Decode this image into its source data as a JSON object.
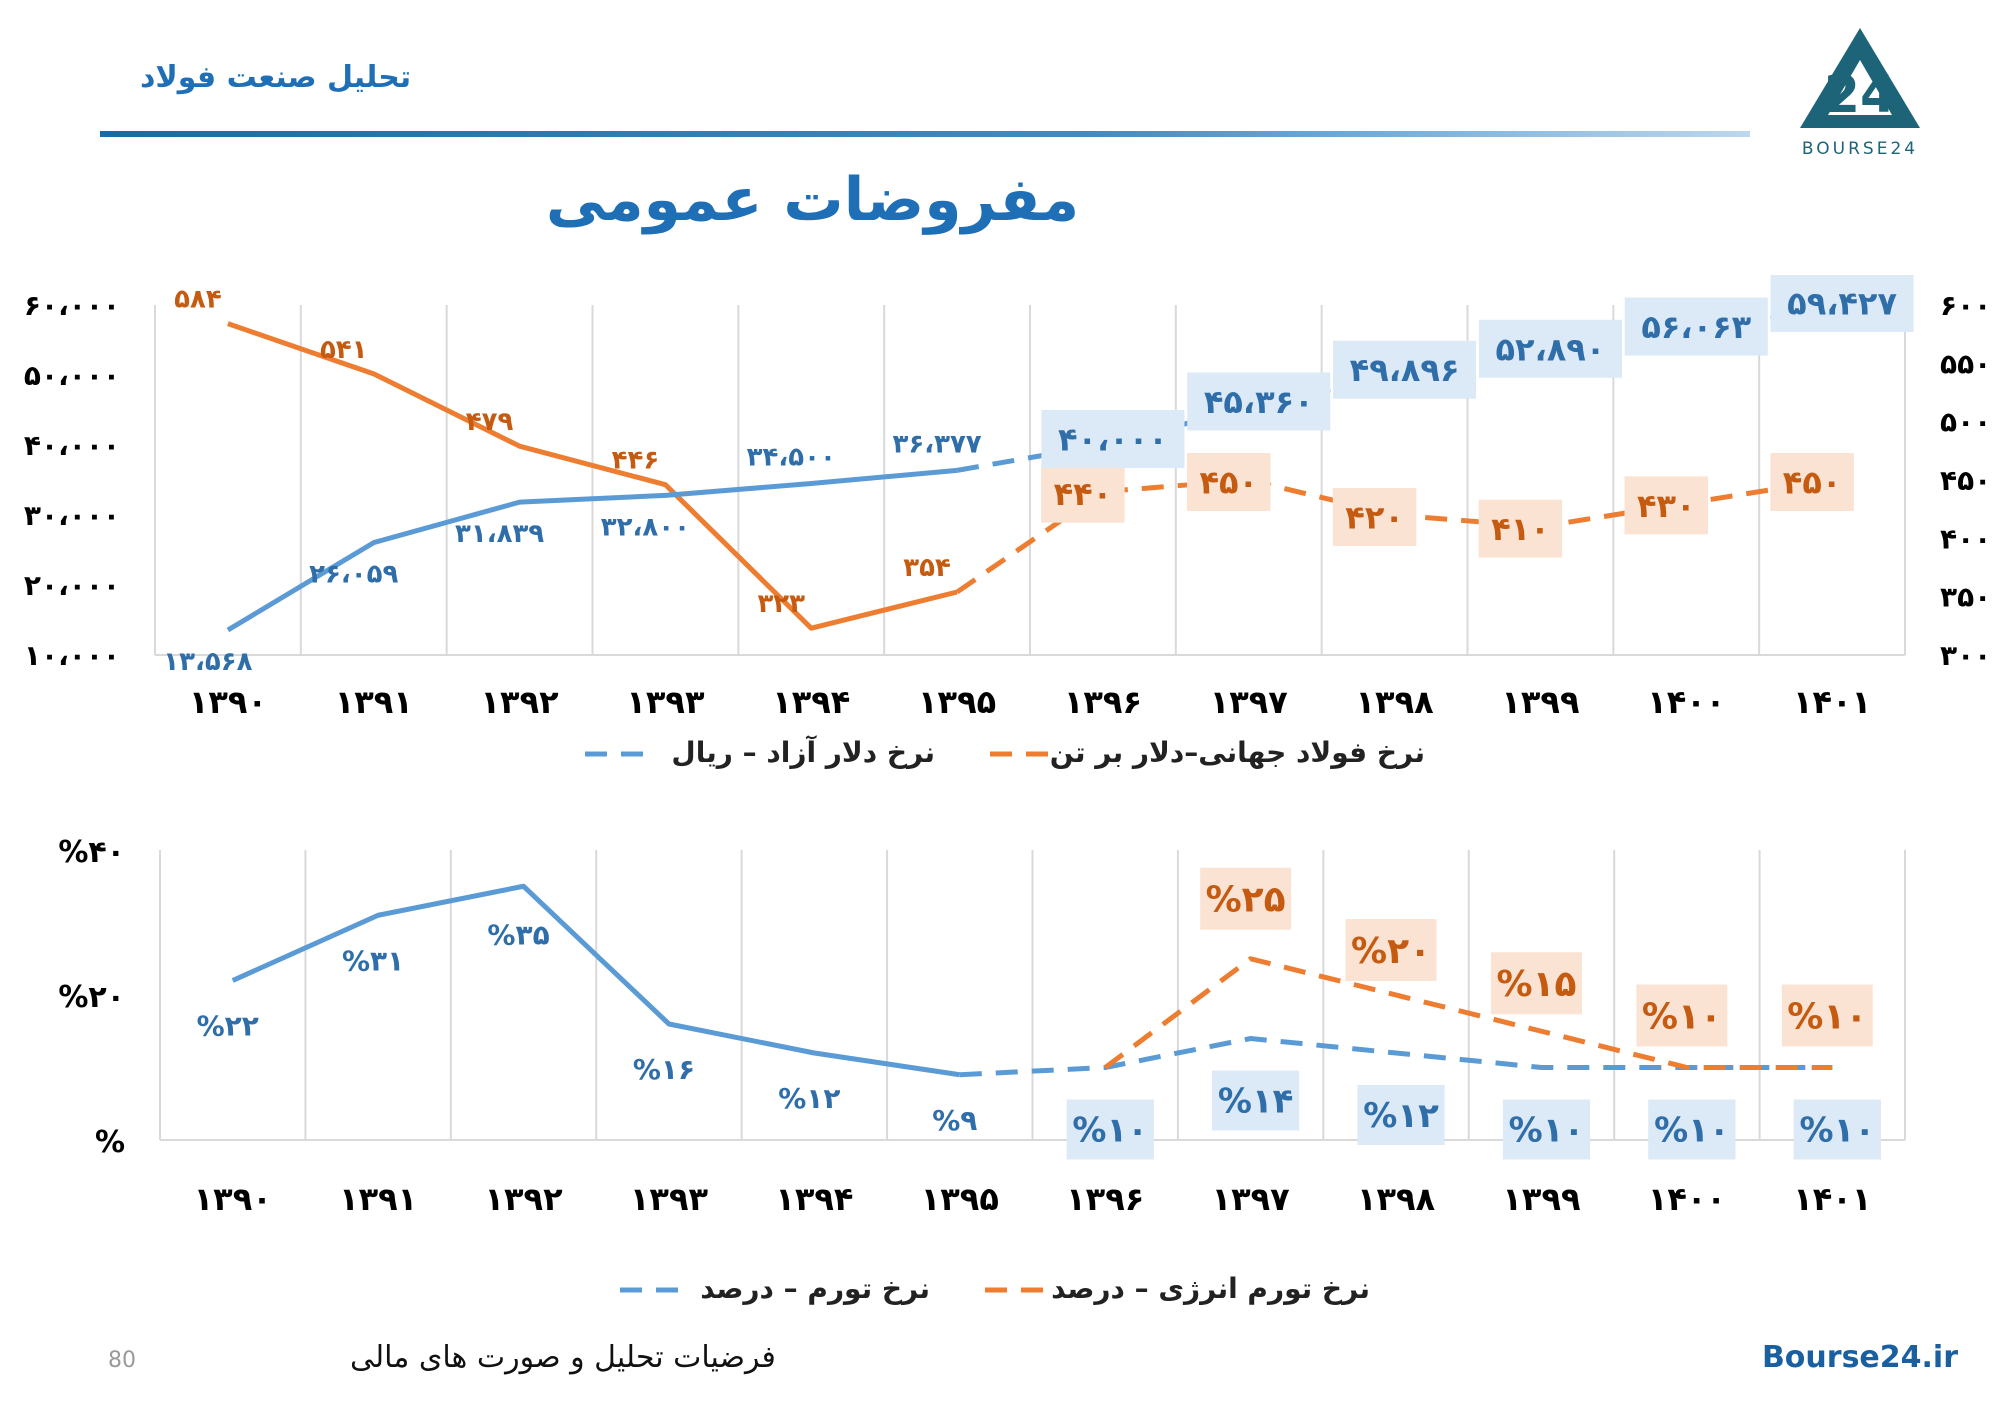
{
  "header": {
    "section_title": "تحلیل صنعت فولاد",
    "logo_text": "BOURSE24",
    "logo_mark": "24"
  },
  "page_title": "مفروضات عمومی",
  "colors": {
    "blue": "#5b9bd5",
    "orange": "#ed7d31",
    "blue_label": "#2f6ea8",
    "orange_label": "#c55a11",
    "blue_box": "#dce9f6",
    "orange_box": "#fbe3d4"
  },
  "chart_data": [
    {
      "type": "line",
      "categories": [
        "۱۳۹۰",
        "۱۳۹۱",
        "۱۳۹۲",
        "۱۳۹۳",
        "۱۳۹۴",
        "۱۳۹۵",
        "۱۳۹۶",
        "۱۳۹۷",
        "۱۳۹۸",
        "۱۳۹۹",
        "۱۴۰۰",
        "۱۴۰۱"
      ],
      "left_ticks": [
        "۶۰،۰۰۰",
        "۵۰،۰۰۰",
        "۴۰،۰۰۰",
        "۳۰،۰۰۰",
        "۲۰،۰۰۰",
        "۱۰،۰۰۰"
      ],
      "right_ticks": [
        "۶۰۰",
        "۵۵۰",
        "۵۰۰",
        "۴۵۰",
        "۴۰۰",
        "۳۵۰",
        "۳۰۰"
      ],
      "left_ylim": [
        10000,
        60000
      ],
      "right_ylim": [
        300,
        600
      ],
      "grid": "vertical",
      "legend_position": "bottom",
      "series": [
        {
          "name": "نرخ دلار آزاد – ریال",
          "axis": "left",
          "values": [
            13568,
            26059,
            31839,
            32800,
            34500,
            36377,
            40000,
            45360,
            49896,
            52890,
            56063,
            59427
          ],
          "labels": [
            "۱۳،۵۶۸",
            "۲۶،۰۵۹",
            "۳۱،۸۳۹",
            "۳۲،۸۰۰",
            "۳۴،۵۰۰",
            "۳۶،۳۷۷",
            "۴۰،۰۰۰",
            "۴۵،۳۶۰",
            "۴۹،۸۹۶",
            "۵۲،۸۹۰",
            "۵۶،۰۶۳",
            "۵۹،۴۲۷"
          ],
          "actual_count": 6
        },
        {
          "name": "نرخ فولاد جهانی–دلار بر تن",
          "axis": "right",
          "values": [
            584,
            541,
            479,
            446,
            323,
            354,
            440,
            450,
            420,
            410,
            430,
            450
          ],
          "labels": [
            "۵۸۴",
            "۵۴۱",
            "۴۷۹",
            "۴۴۶",
            "۳۲۳",
            "۳۵۴",
            "۴۴۰",
            "۴۵۰",
            "۴۲۰",
            "۴۱۰",
            "۴۳۰",
            "۴۵۰"
          ],
          "actual_count": 6
        }
      ]
    },
    {
      "type": "line",
      "categories": [
        "۱۳۹۰",
        "۱۳۹۱",
        "۱۳۹۲",
        "۱۳۹۳",
        "۱۳۹۴",
        "۱۳۹۵",
        "۱۳۹۶",
        "۱۳۹۷",
        "۱۳۹۸",
        "۱۳۹۹",
        "۱۴۰۰",
        "۱۴۰۱"
      ],
      "left_ticks": [
        "%۴۰",
        "%۲۰",
        "%"
      ],
      "ylim": [
        0,
        40
      ],
      "grid": "vertical",
      "legend_position": "bottom",
      "series": [
        {
          "name": "نرخ تورم – درصد",
          "values": [
            22,
            31,
            35,
            16,
            12,
            9,
            10,
            14,
            12,
            10,
            10,
            10
          ],
          "labels": [
            "%۲۲",
            "%۳۱",
            "%۳۵",
            "%۱۶",
            "%۱۲",
            "%۹",
            "%۱۰",
            "%۱۴",
            "%۱۲",
            "%۱۰",
            "%۱۰",
            "%۱۰"
          ],
          "actual_count": 6
        },
        {
          "name": "نرخ تورم انرژی – درصد",
          "values": [
            null,
            null,
            null,
            null,
            null,
            null,
            10,
            25,
            20,
            15,
            10,
            10
          ],
          "labels": [
            "",
            "",
            "",
            "",
            "",
            "",
            "",
            "%۲۵",
            "%۲۰",
            "%۱۵",
            "%۱۰",
            "%۱۰"
          ],
          "actual_count": 0
        }
      ]
    }
  ],
  "footer": {
    "page_number": "80",
    "caption": "فرضیات تحلیل و صورت های مالی",
    "site": "Bourse24.ir"
  }
}
